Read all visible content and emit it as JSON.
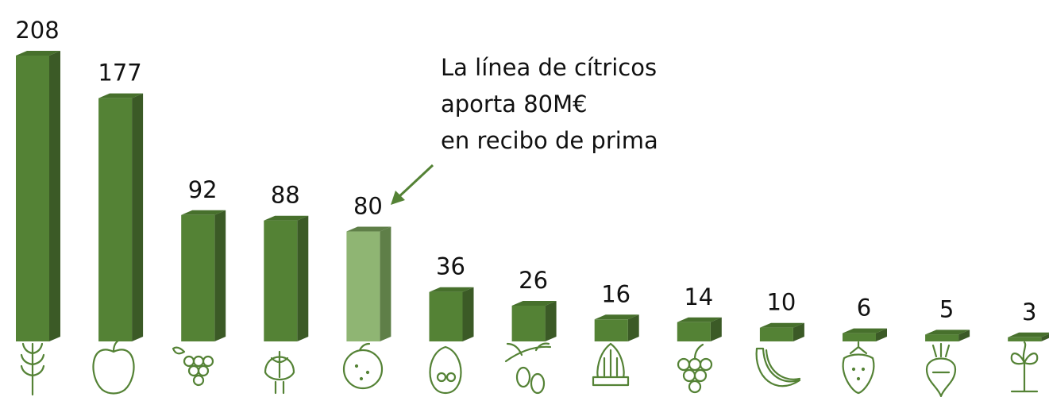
{
  "chart_data": {
    "type": "bar3d",
    "values": [
      208,
      177,
      92,
      88,
      80,
      36,
      26,
      16,
      14,
      10,
      6,
      5,
      3
    ],
    "color": "#548235",
    "side_color": "#3b5a26",
    "top_color": "#47702c",
    "highlight": {
      "index": 4,
      "color": "#8fb573",
      "side_color": "#5f7f48"
    },
    "annotation": [
      "La línea de cítricos",
      "aporta 80M€",
      "en recibo de prima"
    ],
    "annotation_color": "#548235"
  }
}
